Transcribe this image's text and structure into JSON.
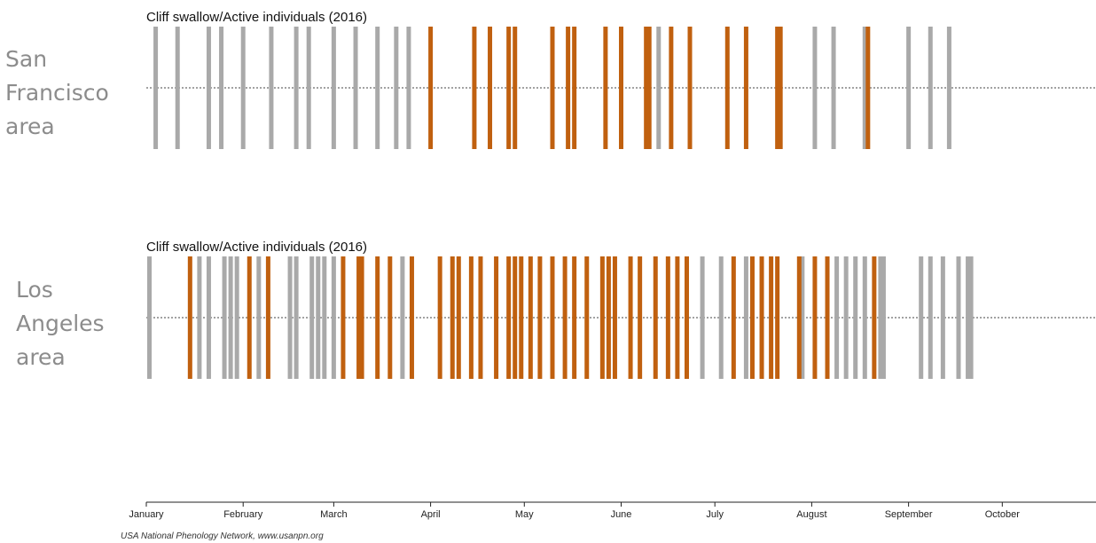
{
  "chart_data": {
    "type": "timeline",
    "credit": "USA National Phenology Network, www.usanpn.org",
    "x_axis": {
      "tick_labels": [
        "January",
        "February",
        "March",
        "April",
        "May",
        "June",
        "July",
        "August",
        "September",
        "October"
      ],
      "tick_dates": [
        "2016-01-01",
        "2016-02-01",
        "2016-03-01",
        "2016-04-01",
        "2016-05-01",
        "2016-06-01",
        "2016-07-01",
        "2016-08-01",
        "2016-09-01",
        "2016-10-01"
      ],
      "range": [
        "2016-01-01",
        "2016-10-31"
      ]
    },
    "colors": {
      "yes": "#c0600f",
      "no": "#a9a9a9",
      "center_line": "#444444"
    },
    "panels": [
      {
        "region_label": [
          "San",
          "Francisco",
          "area"
        ],
        "title": "Cliff swallow/Active individuals (2016)",
        "observations": [
          {
            "date": "2016-01-04",
            "status": "no"
          },
          {
            "date": "2016-01-11",
            "status": "no"
          },
          {
            "date": "2016-01-21",
            "status": "no"
          },
          {
            "date": "2016-01-25",
            "status": "no"
          },
          {
            "date": "2016-02-01",
            "status": "no"
          },
          {
            "date": "2016-02-10",
            "status": "no"
          },
          {
            "date": "2016-02-18",
            "status": "no"
          },
          {
            "date": "2016-02-22",
            "status": "no"
          },
          {
            "date": "2016-03-01",
            "status": "no"
          },
          {
            "date": "2016-03-08",
            "status": "no"
          },
          {
            "date": "2016-03-15",
            "status": "no"
          },
          {
            "date": "2016-03-21",
            "status": "no"
          },
          {
            "date": "2016-03-25",
            "status": "no"
          },
          {
            "date": "2016-04-01",
            "status": "yes"
          },
          {
            "date": "2016-04-15",
            "status": "yes"
          },
          {
            "date": "2016-04-20",
            "status": "yes"
          },
          {
            "date": "2016-04-26",
            "status": "yes"
          },
          {
            "date": "2016-04-28",
            "status": "yes"
          },
          {
            "date": "2016-05-10",
            "status": "yes"
          },
          {
            "date": "2016-05-15",
            "status": "yes"
          },
          {
            "date": "2016-05-17",
            "status": "yes"
          },
          {
            "date": "2016-05-27",
            "status": "yes"
          },
          {
            "date": "2016-06-01",
            "status": "yes"
          },
          {
            "date": "2016-06-09",
            "status": "yes"
          },
          {
            "date": "2016-06-10",
            "status": "yes"
          },
          {
            "date": "2016-06-13",
            "status": "no"
          },
          {
            "date": "2016-06-17",
            "status": "yes"
          },
          {
            "date": "2016-06-23",
            "status": "yes"
          },
          {
            "date": "2016-07-05",
            "status": "yes"
          },
          {
            "date": "2016-07-11",
            "status": "yes"
          },
          {
            "date": "2016-07-21",
            "status": "yes"
          },
          {
            "date": "2016-07-22",
            "status": "yes"
          },
          {
            "date": "2016-08-02",
            "status": "no"
          },
          {
            "date": "2016-08-08",
            "status": "no"
          },
          {
            "date": "2016-08-18",
            "status": "no"
          },
          {
            "date": "2016-08-19",
            "status": "yes"
          },
          {
            "date": "2016-09-01",
            "status": "no"
          },
          {
            "date": "2016-09-08",
            "status": "no"
          },
          {
            "date": "2016-09-14",
            "status": "no"
          }
        ]
      },
      {
        "region_label": [
          "Los",
          "Angeles",
          "area"
        ],
        "title": "Cliff swallow/Active individuals (2016)",
        "observations": [
          {
            "date": "2016-01-02",
            "status": "no"
          },
          {
            "date": "2016-01-15",
            "status": "yes"
          },
          {
            "date": "2016-01-18",
            "status": "no"
          },
          {
            "date": "2016-01-21",
            "status": "no"
          },
          {
            "date": "2016-01-26",
            "status": "no"
          },
          {
            "date": "2016-01-28",
            "status": "no"
          },
          {
            "date": "2016-01-30",
            "status": "no"
          },
          {
            "date": "2016-02-03",
            "status": "yes"
          },
          {
            "date": "2016-02-06",
            "status": "no"
          },
          {
            "date": "2016-02-09",
            "status": "yes"
          },
          {
            "date": "2016-02-16",
            "status": "no"
          },
          {
            "date": "2016-02-18",
            "status": "no"
          },
          {
            "date": "2016-02-23",
            "status": "no"
          },
          {
            "date": "2016-02-25",
            "status": "no"
          },
          {
            "date": "2016-02-27",
            "status": "no"
          },
          {
            "date": "2016-03-01",
            "status": "no"
          },
          {
            "date": "2016-03-04",
            "status": "yes"
          },
          {
            "date": "2016-03-09",
            "status": "yes"
          },
          {
            "date": "2016-03-10",
            "status": "yes"
          },
          {
            "date": "2016-03-15",
            "status": "yes"
          },
          {
            "date": "2016-03-19",
            "status": "yes"
          },
          {
            "date": "2016-03-23",
            "status": "no"
          },
          {
            "date": "2016-03-26",
            "status": "yes"
          },
          {
            "date": "2016-04-04",
            "status": "yes"
          },
          {
            "date": "2016-04-08",
            "status": "yes"
          },
          {
            "date": "2016-04-10",
            "status": "yes"
          },
          {
            "date": "2016-04-14",
            "status": "yes"
          },
          {
            "date": "2016-04-17",
            "status": "yes"
          },
          {
            "date": "2016-04-22",
            "status": "yes"
          },
          {
            "date": "2016-04-26",
            "status": "yes"
          },
          {
            "date": "2016-04-28",
            "status": "yes"
          },
          {
            "date": "2016-04-30",
            "status": "yes"
          },
          {
            "date": "2016-05-03",
            "status": "yes"
          },
          {
            "date": "2016-05-06",
            "status": "yes"
          },
          {
            "date": "2016-05-10",
            "status": "yes"
          },
          {
            "date": "2016-05-14",
            "status": "yes"
          },
          {
            "date": "2016-05-17",
            "status": "yes"
          },
          {
            "date": "2016-05-21",
            "status": "yes"
          },
          {
            "date": "2016-05-26",
            "status": "yes"
          },
          {
            "date": "2016-05-28",
            "status": "yes"
          },
          {
            "date": "2016-05-30",
            "status": "yes"
          },
          {
            "date": "2016-06-04",
            "status": "yes"
          },
          {
            "date": "2016-06-07",
            "status": "yes"
          },
          {
            "date": "2016-06-12",
            "status": "yes"
          },
          {
            "date": "2016-06-16",
            "status": "yes"
          },
          {
            "date": "2016-06-19",
            "status": "yes"
          },
          {
            "date": "2016-06-22",
            "status": "yes"
          },
          {
            "date": "2016-06-27",
            "status": "no"
          },
          {
            "date": "2016-07-03",
            "status": "no"
          },
          {
            "date": "2016-07-07",
            "status": "yes"
          },
          {
            "date": "2016-07-11",
            "status": "no"
          },
          {
            "date": "2016-07-13",
            "status": "yes"
          },
          {
            "date": "2016-07-16",
            "status": "yes"
          },
          {
            "date": "2016-07-19",
            "status": "yes"
          },
          {
            "date": "2016-07-21",
            "status": "yes"
          },
          {
            "date": "2016-07-28",
            "status": "yes"
          },
          {
            "date": "2016-07-29",
            "status": "no"
          },
          {
            "date": "2016-08-02",
            "status": "yes"
          },
          {
            "date": "2016-08-06",
            "status": "yes"
          },
          {
            "date": "2016-08-09",
            "status": "no"
          },
          {
            "date": "2016-08-12",
            "status": "no"
          },
          {
            "date": "2016-08-15",
            "status": "no"
          },
          {
            "date": "2016-08-18",
            "status": "no"
          },
          {
            "date": "2016-08-21",
            "status": "yes"
          },
          {
            "date": "2016-08-23",
            "status": "no"
          },
          {
            "date": "2016-08-24",
            "status": "no"
          },
          {
            "date": "2016-09-05",
            "status": "no"
          },
          {
            "date": "2016-09-08",
            "status": "no"
          },
          {
            "date": "2016-09-12",
            "status": "no"
          },
          {
            "date": "2016-09-17",
            "status": "no"
          },
          {
            "date": "2016-09-20",
            "status": "no"
          },
          {
            "date": "2016-09-21",
            "status": "no"
          }
        ]
      }
    ]
  }
}
